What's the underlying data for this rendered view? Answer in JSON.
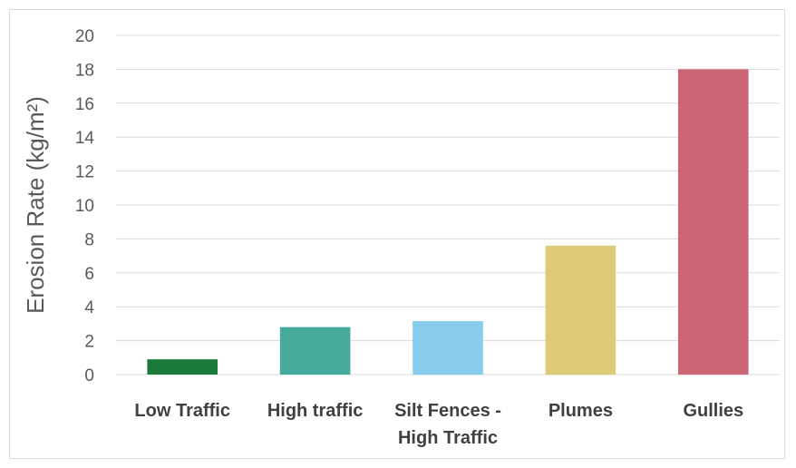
{
  "chart_data": {
    "type": "bar",
    "title": "",
    "xlabel": "",
    "ylabel": "Erosion Rate (kg/m²)",
    "ylim": [
      0,
      20
    ],
    "ytick_step": 2,
    "yticks": [
      "0",
      "2",
      "4",
      "6",
      "8",
      "10",
      "12",
      "14",
      "16",
      "18",
      "20"
    ],
    "grid": true,
    "legend": "none",
    "categories": [
      "Low Traffic",
      "High traffic",
      "Silt Fences - High Traffic",
      "Plumes",
      "Gullies"
    ],
    "category_lines": [
      [
        "Low Traffic"
      ],
      [
        "High traffic"
      ],
      [
        "Silt Fences -",
        "High Traffic"
      ],
      [
        "Plumes"
      ],
      [
        "Gullies"
      ]
    ],
    "values": [
      0.9,
      2.8,
      3.15,
      7.6,
      18.0
    ],
    "colors": [
      "#1a7a3a",
      "#45aa9a",
      "#88ccee",
      "#ddcc77",
      "#cc6677"
    ]
  }
}
